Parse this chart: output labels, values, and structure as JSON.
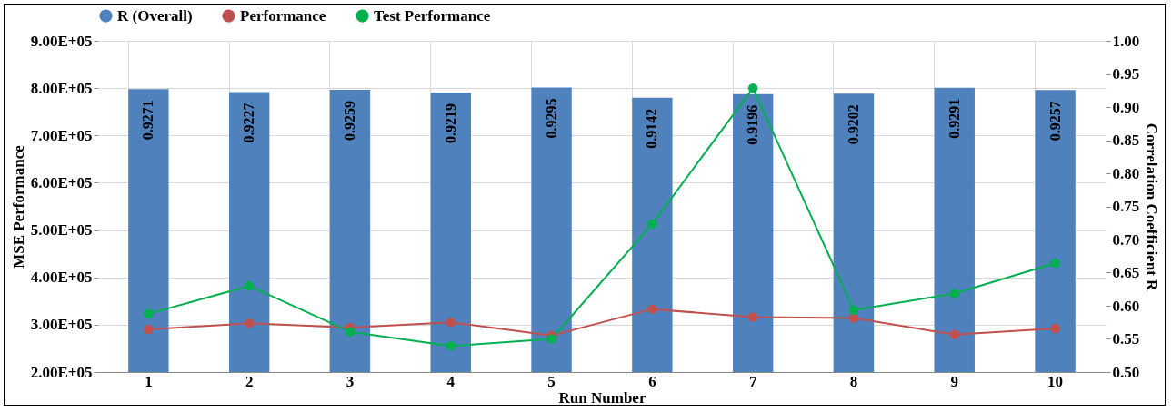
{
  "chart_data": {
    "type": "bar",
    "xlabel": "Run Number",
    "ylabel": "MSE Performance",
    "y2label": "Correlation Coefficient R",
    "categories": [
      "1",
      "2",
      "3",
      "4",
      "5",
      "6",
      "7",
      "8",
      "9",
      "10"
    ],
    "series": [
      {
        "name": "R (Overall)",
        "axis": "y2",
        "color": "#4f81bd",
        "values": [
          0.9271,
          0.9227,
          0.9259,
          0.9219,
          0.9295,
          0.9142,
          0.9196,
          0.9202,
          0.9291,
          0.9257
        ],
        "value_labels": [
          "0.9271",
          "0.9227",
          "0.9259",
          "0.9219",
          "0.9295",
          "0.9142",
          "0.9196",
          "0.9202",
          "0.9291",
          "0.9257"
        ]
      },
      {
        "name": "Performance",
        "type": "line",
        "color": "#c0504d",
        "values": [
          290000,
          303000,
          294000,
          305000,
          277000,
          333000,
          316000,
          314000,
          279000,
          292000
        ]
      },
      {
        "name": "Test Performance",
        "type": "line",
        "color": "#00b050",
        "values": [
          323000,
          382000,
          285000,
          255000,
          270000,
          513000,
          800000,
          331000,
          366000,
          430000
        ]
      }
    ],
    "marker": "circle",
    "grid": true,
    "legend": "top",
    "ylim": [
      200000,
      900000
    ],
    "yticks": [
      {
        "value": 200000,
        "label": "2.00E+05"
      },
      {
        "value": 300000,
        "label": "3.00E+05"
      },
      {
        "value": 400000,
        "label": "4.00E+05"
      },
      {
        "value": 500000,
        "label": "5.00E+05"
      },
      {
        "value": 600000,
        "label": "6.00E+05"
      },
      {
        "value": 700000,
        "label": "7.00E+05"
      },
      {
        "value": 800000,
        "label": "8.00E+05"
      },
      {
        "value": 900000,
        "label": "9.00E+05"
      }
    ],
    "y2lim": [
      0.5,
      1.0
    ],
    "y2ticks": [
      {
        "value": 0.5,
        "label": "0.50"
      },
      {
        "value": 0.55,
        "label": "0.55"
      },
      {
        "value": 0.6,
        "label": "0.60"
      },
      {
        "value": 0.65,
        "label": "0.65"
      },
      {
        "value": 0.7,
        "label": "0.70"
      },
      {
        "value": 0.75,
        "label": "0.75"
      },
      {
        "value": 0.8,
        "label": "0.80"
      },
      {
        "value": 0.85,
        "label": "0.85"
      },
      {
        "value": 0.9,
        "label": "0.90"
      },
      {
        "value": 0.95,
        "label": "0.95"
      },
      {
        "value": 1.0,
        "label": "1.00"
      }
    ]
  }
}
